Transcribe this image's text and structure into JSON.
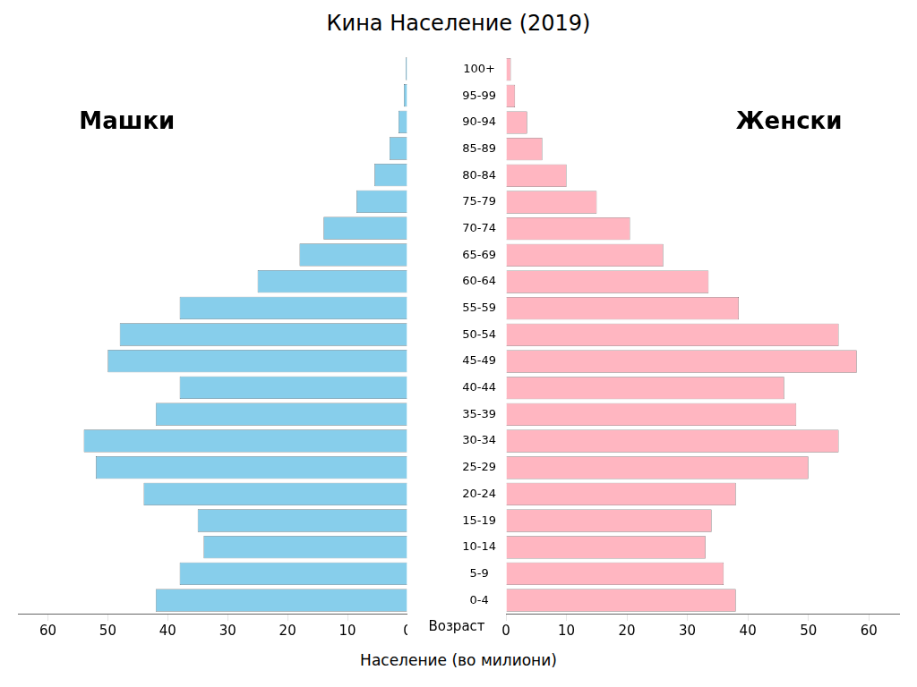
{
  "chart_data": {
    "type": "bar",
    "orientation": "horizontal",
    "title": "Кина Население (2019)",
    "xlabel": "Население (во милиони)",
    "ylabel": "Возраст",
    "categories": [
      "0-4",
      "5-9",
      "10-14",
      "15-19",
      "20-24",
      "25-29",
      "30-34",
      "35-39",
      "40-44",
      "45-49",
      "50-54",
      "55-59",
      "60-64",
      "65-69",
      "70-74",
      "75-79",
      "80-84",
      "85-89",
      "90-94",
      "95-99",
      "100+"
    ],
    "series": [
      {
        "name": "Машки",
        "color": "#87CEEB",
        "values": [
          42.0,
          38.0,
          34.0,
          35.0,
          44.0,
          52.0,
          54.0,
          42.0,
          38.0,
          50.0,
          48.0,
          38.0,
          25.0,
          18.0,
          14.0,
          8.5,
          5.5,
          3.0,
          1.5,
          0.6,
          0.3
        ]
      },
      {
        "name": "Женски",
        "color": "#FFB6C1",
        "values": [
          38.0,
          36.0,
          33.0,
          34.0,
          38.0,
          50.0,
          55.0,
          48.0,
          46.0,
          58.0,
          55.0,
          38.5,
          33.5,
          26.0,
          20.5,
          15.0,
          10.0,
          6.0,
          3.5,
          1.5,
          0.8
        ]
      }
    ],
    "xlim": [
      0,
      65
    ],
    "xticks": [
      0,
      10,
      20,
      30,
      40,
      50,
      60
    ],
    "grid": false
  }
}
